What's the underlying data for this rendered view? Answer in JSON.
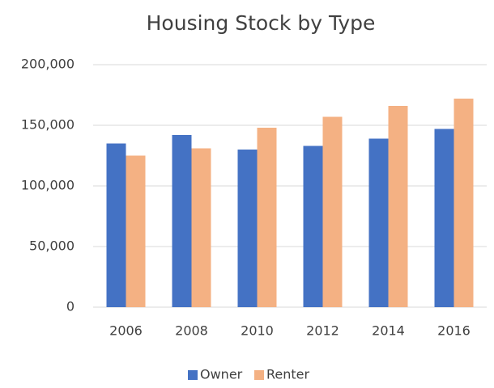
{
  "chart_data": {
    "type": "bar",
    "title": "Housing Stock by Type",
    "categories": [
      "2006",
      "2008",
      "2010",
      "2012",
      "2014",
      "2016"
    ],
    "series": [
      {
        "name": "Owner",
        "color": "#4472c4",
        "values": [
          135000,
          142000,
          130000,
          133000,
          139000,
          147000
        ]
      },
      {
        "name": "Renter",
        "color": "#f4b183",
        "values": [
          125000,
          131000,
          148000,
          157000,
          166000,
          172000
        ]
      }
    ],
    "ylim": [
      0,
      200000
    ],
    "yticks": [
      0,
      {
        "value": 50000,
        "label": "50,000"
      },
      {
        "value": 100000,
        "label": "100,000"
      },
      {
        "value": 150000,
        "label": "150,000"
      },
      {
        "value": 200000,
        "label": "200,000"
      }
    ],
    "grid": true,
    "legend": "bottom"
  }
}
